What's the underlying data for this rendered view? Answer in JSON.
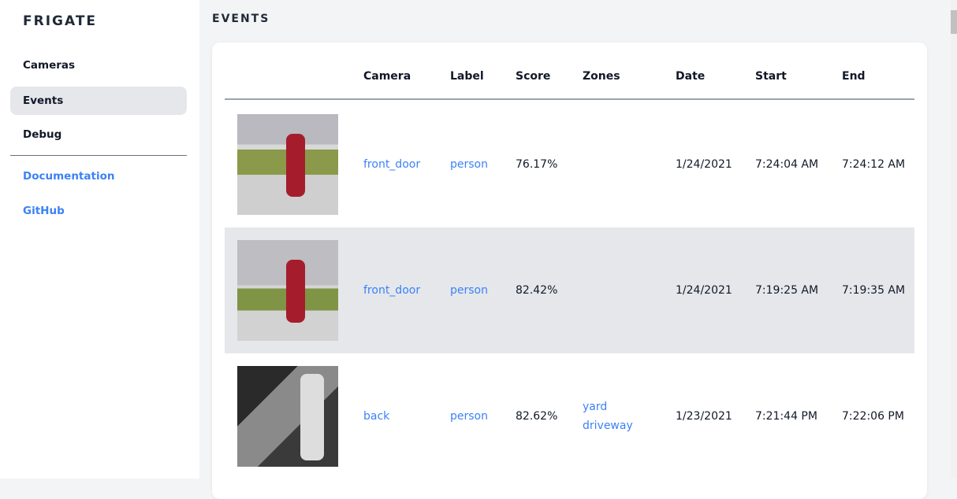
{
  "sidebar": {
    "brand": "FRIGATE",
    "items": [
      {
        "label": "Cameras"
      },
      {
        "label": "Events",
        "active": true
      },
      {
        "label": "Debug"
      }
    ],
    "links": [
      {
        "label": "Documentation"
      },
      {
        "label": "GitHub"
      }
    ]
  },
  "page": {
    "title": "EVENTS"
  },
  "table": {
    "headers": [
      "Camera",
      "Label",
      "Score",
      "Zones",
      "Date",
      "Start",
      "End"
    ],
    "rows": [
      {
        "camera": "front_door",
        "label": "person",
        "score": "76.17%",
        "zones": [
          "",
          ""
        ],
        "date": "1/24/2021",
        "start": "7:24:04 AM",
        "end": "7:24:12 AM"
      },
      {
        "camera": "front_door",
        "label": "person",
        "score": "82.42%",
        "zones": [
          "",
          ""
        ],
        "date": "1/24/2021",
        "start": "7:19:25 AM",
        "end": "7:19:35 AM"
      },
      {
        "camera": "back",
        "label": "person",
        "score": "82.62%",
        "zones": [
          "yard",
          "driveway"
        ],
        "date": "1/23/2021",
        "start": "7:21:44 PM",
        "end": "7:22:06 PM"
      }
    ]
  },
  "colors": {
    "accent": "#3b82f6",
    "active_bg": "#e5e7eb"
  }
}
